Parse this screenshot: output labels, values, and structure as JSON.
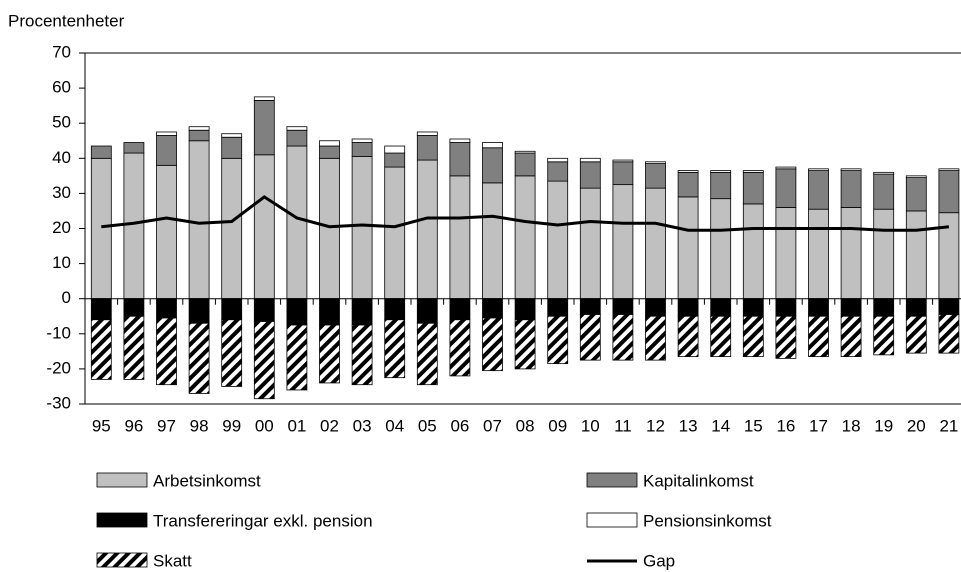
{
  "chart_data": {
    "type": "bar",
    "stacked": true,
    "y_axis_label": "Procentenheter",
    "categories": [
      "95",
      "96",
      "97",
      "98",
      "99",
      "00",
      "01",
      "02",
      "03",
      "04",
      "05",
      "06",
      "07",
      "08",
      "09",
      "10",
      "11",
      "12",
      "13",
      "14",
      "15",
      "16",
      "17",
      "18",
      "19",
      "20",
      "21"
    ],
    "ylim": [
      -30,
      70
    ],
    "yticks": [
      -30,
      -20,
      -10,
      0,
      10,
      20,
      30,
      40,
      50,
      60,
      70
    ],
    "series": [
      {
        "name": "Arbetsinkomst",
        "color": "#c0c0c0",
        "values": [
          40,
          41.5,
          38,
          45,
          40,
          41,
          43.5,
          40,
          40.5,
          37.5,
          39.5,
          35,
          33,
          35,
          33.5,
          31.5,
          32.5,
          31.5,
          29,
          28.5,
          27,
          26,
          25.5,
          26,
          25.5,
          25,
          24.5
        ]
      },
      {
        "name": "Kapitalinkomst",
        "color": "#808080",
        "values": [
          3.5,
          3,
          8.5,
          3,
          6,
          15.5,
          4.5,
          3.5,
          4,
          4,
          7,
          9.5,
          10,
          6.5,
          5.5,
          7.5,
          6.5,
          7,
          7,
          7.5,
          9,
          11,
          11,
          10.5,
          10,
          9.5,
          12
        ]
      },
      {
        "name": "Transfereringar exkl. pension",
        "color": "#000000",
        "values": [
          -6,
          -5,
          -5.5,
          -7,
          -6,
          -6.5,
          -7.5,
          -7.5,
          -7.5,
          -6,
          -7,
          -6,
          -5.5,
          -6,
          -5,
          -4.5,
          -4.5,
          -5,
          -5,
          -5,
          -5,
          -5,
          -5,
          -5,
          -5,
          -5,
          -4.5
        ]
      },
      {
        "name": "Pensionsinkomst",
        "color": "#ffffff",
        "values": [
          0,
          0,
          1,
          1,
          1,
          1,
          1,
          1.5,
          1,
          2,
          1,
          1,
          1.5,
          0.5,
          1,
          1,
          0.5,
          0.5,
          0.5,
          0.5,
          0.5,
          0.5,
          0.5,
          0.5,
          0.5,
          0.5,
          0.5
        ]
      },
      {
        "name": "Skatt",
        "color": "#000000",
        "pattern": "hatch",
        "values": [
          -17,
          -18,
          -19,
          -20,
          -19,
          -22,
          -18.5,
          -16.5,
          -17,
          -16.5,
          -17.5,
          -16,
          -15,
          -14,
          -13.5,
          -13,
          -13,
          -12.5,
          -11.5,
          -11.5,
          -11.5,
          -12,
          -11.5,
          -11.5,
          -11,
          -10.5,
          -11
        ]
      },
      {
        "name": "Gap",
        "type": "line",
        "color": "#000000",
        "values": [
          20.5,
          21.5,
          23,
          21.5,
          22,
          29,
          23,
          20.5,
          21,
          20.5,
          23,
          23,
          23.5,
          22,
          21,
          22,
          21.5,
          21.5,
          19.5,
          19.5,
          20,
          20,
          20,
          20,
          19.5,
          19.5,
          20.5
        ]
      }
    ]
  }
}
